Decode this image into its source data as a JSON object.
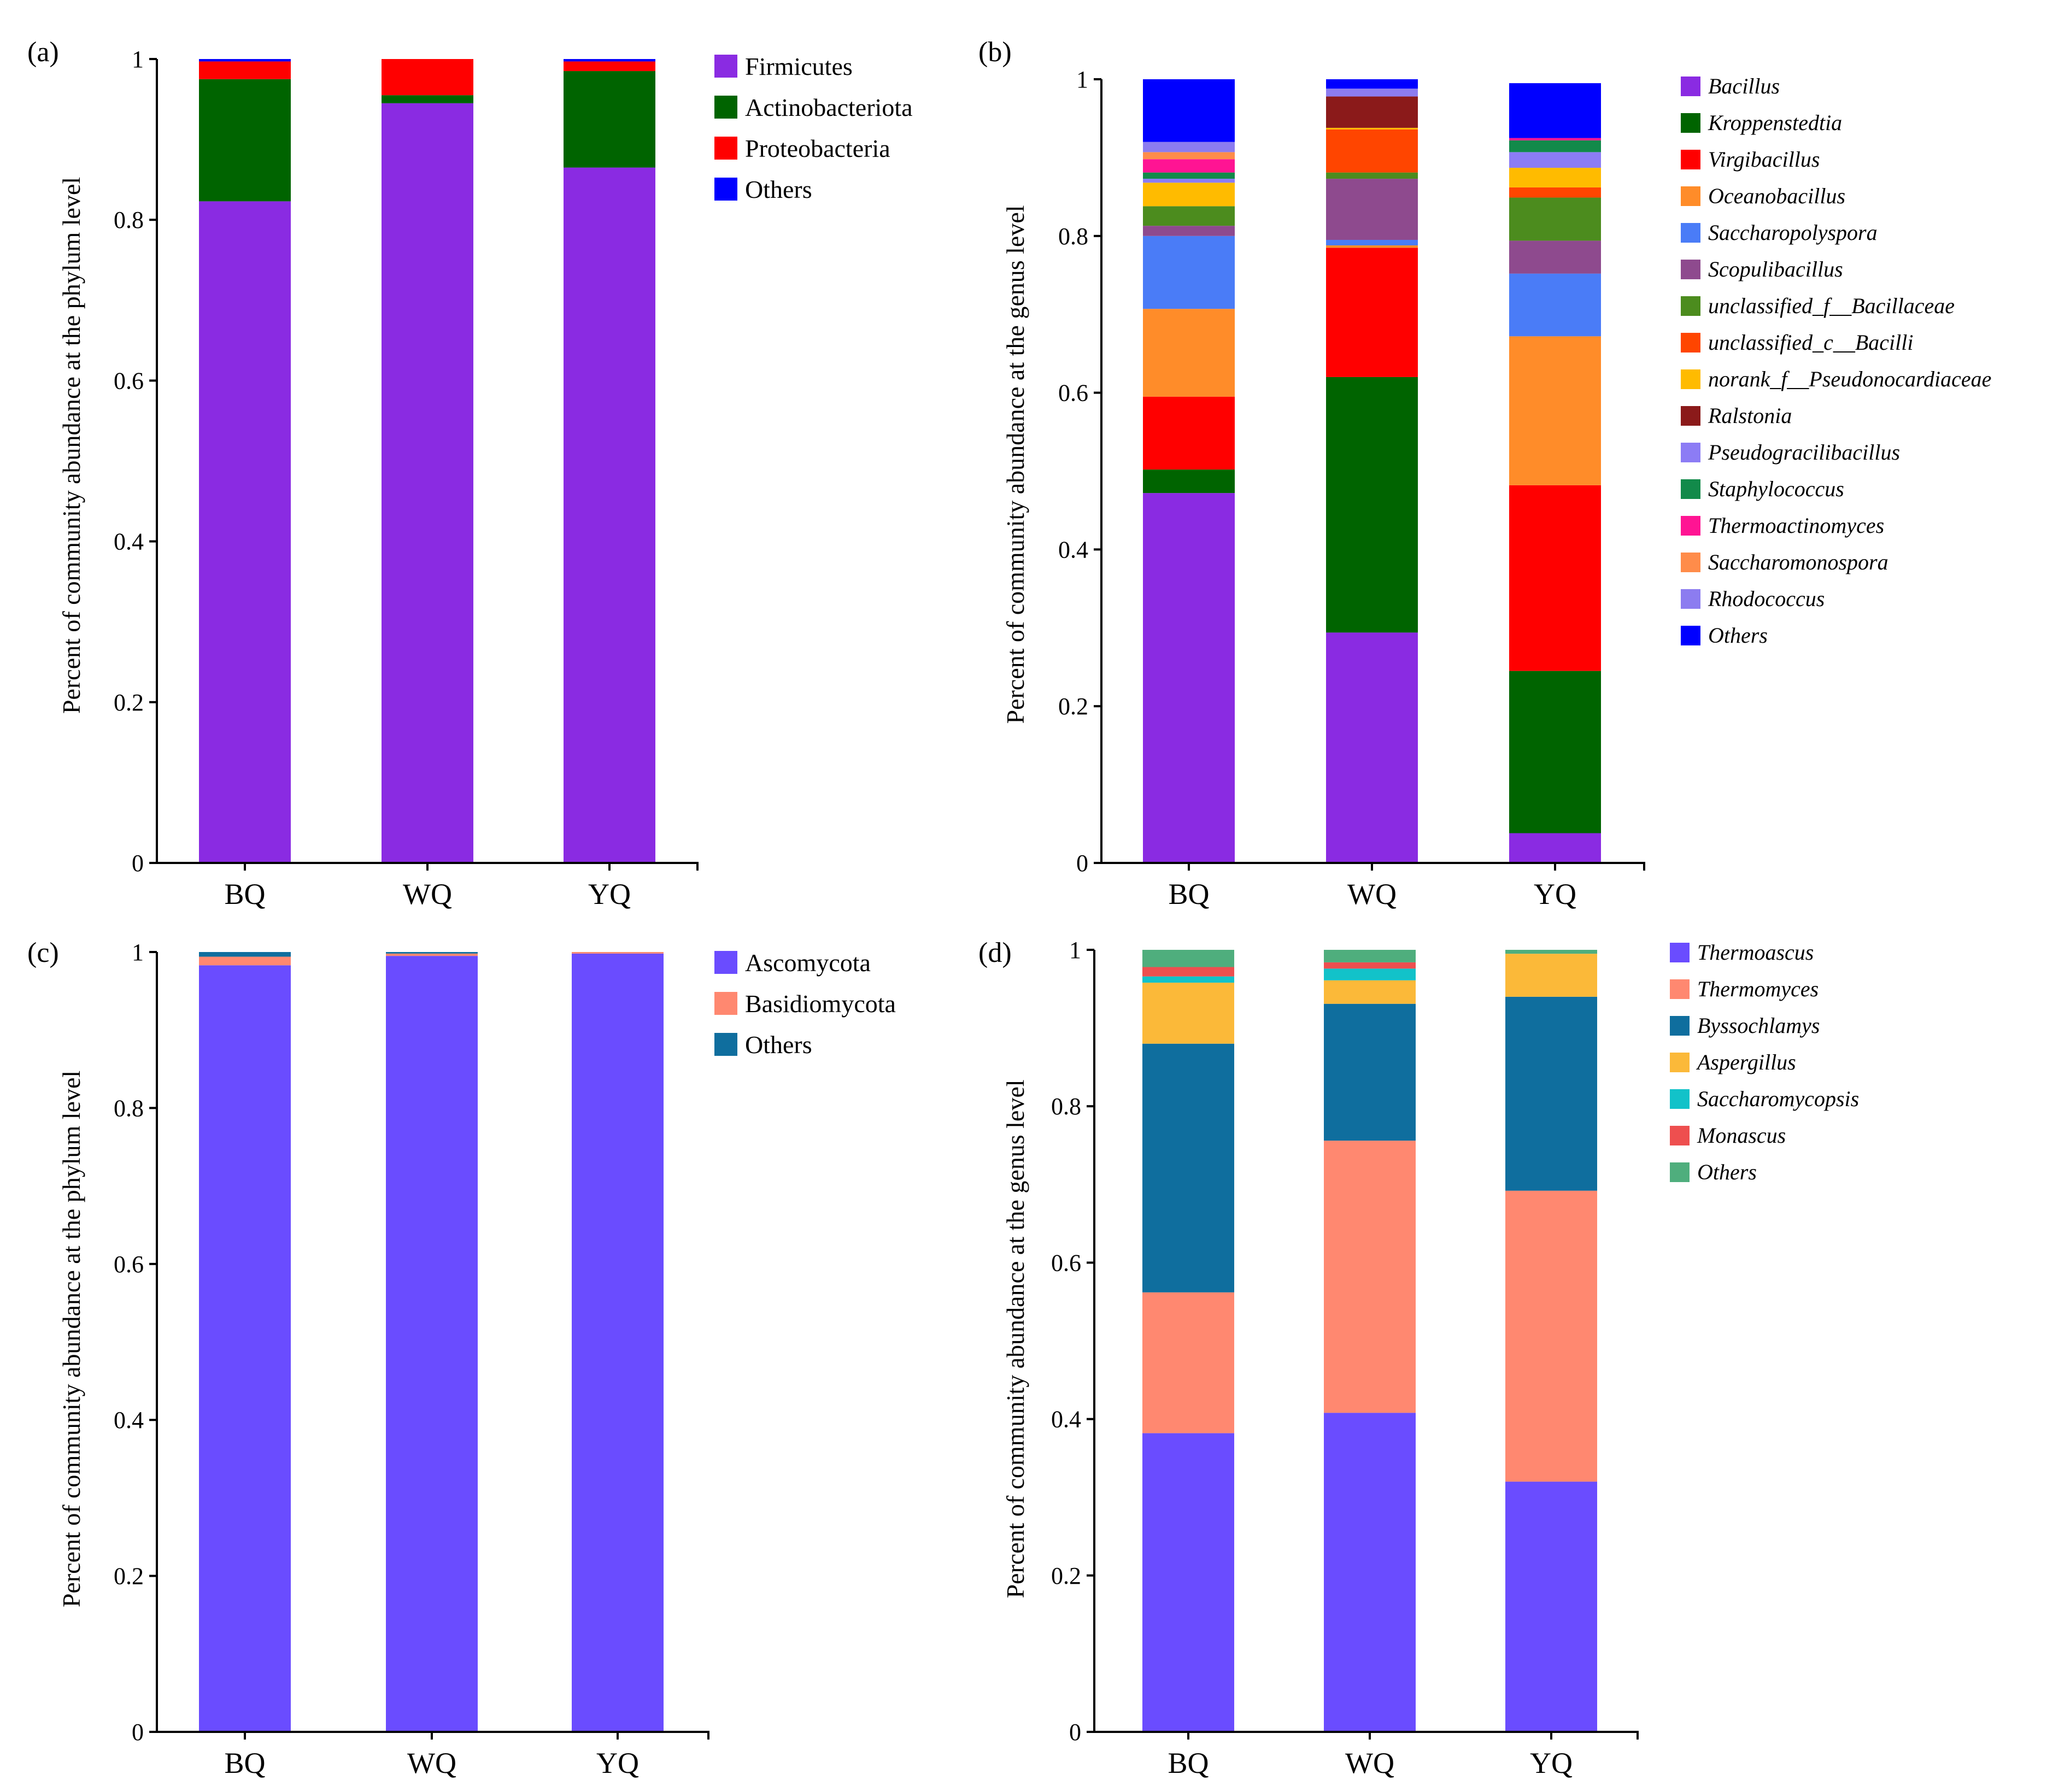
{
  "chart_data": [
    {
      "id": "a",
      "panel_label": "(a)",
      "type": "bar",
      "stacked": true,
      "ylabel": "Percent of community abundance at the phylum level",
      "xlabel": "",
      "ylim": [
        0,
        1
      ],
      "yticks": [
        "0",
        "0.2",
        "0.4",
        "0.6",
        "0.8",
        "1"
      ],
      "categories": [
        "BQ",
        "WQ",
        "YQ"
      ],
      "legend_italic": false,
      "series": [
        {
          "name": "Firmicutes",
          "color": "#8A2BE2",
          "values": [
            0.823,
            0.945,
            0.865
          ]
        },
        {
          "name": "Actinobacteriota",
          "color": "#006400",
          "values": [
            0.152,
            0.01,
            0.12
          ]
        },
        {
          "name": "Proteobacteria",
          "color": "#FF0000",
          "values": [
            0.022,
            0.045,
            0.012
          ]
        },
        {
          "name": "Others",
          "color": "#0000FF",
          "values": [
            0.003,
            0.0,
            0.003
          ]
        }
      ]
    },
    {
      "id": "b",
      "panel_label": "(b)",
      "type": "bar",
      "stacked": true,
      "ylabel": "Percent of community abundance at the genus level",
      "xlabel": "",
      "ylim": [
        0,
        1
      ],
      "yticks": [
        "0",
        "0.2",
        "0.4",
        "0.6",
        "0.8",
        "1"
      ],
      "categories": [
        "BQ",
        "WQ",
        "YQ"
      ],
      "legend_italic": true,
      "series": [
        {
          "name": "Bacillus",
          "color": "#8A2BE2",
          "values": [
            0.472,
            0.294,
            0.038
          ]
        },
        {
          "name": "Kroppenstedtia",
          "color": "#006400",
          "values": [
            0.03,
            0.326,
            0.207
          ]
        },
        {
          "name": "Virgibacillus",
          "color": "#FF0000",
          "values": [
            0.093,
            0.165,
            0.237
          ]
        },
        {
          "name": "Oceanobacillus",
          "color": "#FF8C29",
          "values": [
            0.112,
            0.003,
            0.19
          ]
        },
        {
          "name": "Saccharopolyspora",
          "color": "#4A7CF7",
          "values": [
            0.093,
            0.007,
            0.08
          ]
        },
        {
          "name": "Scopulibacillus",
          "color": "#8E4A8E",
          "values": [
            0.013,
            0.078,
            0.042
          ]
        },
        {
          "name": "unclassified_f__Bacillaceae",
          "color": "#4C8C1E",
          "values": [
            0.025,
            0.008,
            0.055
          ]
        },
        {
          "name": "unclassified_c__Bacilli",
          "color": "#FF4500",
          "values": [
            0.0,
            0.055,
            0.013
          ]
        },
        {
          "name": "norank_f__Pseudonocardiaceae",
          "color": "#FFBB00",
          "values": [
            0.03,
            0.002,
            0.025
          ]
        },
        {
          "name": "Ralstonia",
          "color": "#8B1A1A",
          "values": [
            0.0,
            0.04,
            0.0
          ]
        },
        {
          "name": "Pseudogracilibacillus",
          "color": "#8C7CF5",
          "values": [
            0.005,
            0.0,
            0.02
          ]
        },
        {
          "name": "Staphylococcus",
          "color": "#128A4A",
          "values": [
            0.008,
            0.0,
            0.015
          ]
        },
        {
          "name": "Thermoactinomyces",
          "color": "#FF1493",
          "values": [
            0.017,
            0.0,
            0.003
          ]
        },
        {
          "name": "Saccharomonospora",
          "color": "#FF8C4A",
          "values": [
            0.009,
            0.0,
            0.0
          ]
        },
        {
          "name": "Rhodococcus",
          "color": "#8C7CF0",
          "values": [
            0.013,
            0.01,
            0.0
          ]
        },
        {
          "name": "Others",
          "color": "#0000FF",
          "values": [
            0.08,
            0.012,
            0.07
          ]
        }
      ]
    },
    {
      "id": "c",
      "panel_label": "(c)",
      "type": "bar",
      "stacked": true,
      "ylabel": "Percent of community abundance at the phylum level",
      "xlabel": "",
      "ylim": [
        0,
        1
      ],
      "yticks": [
        "0",
        "0.2",
        "0.4",
        "0.6",
        "0.8",
        "1"
      ],
      "categories": [
        "BQ",
        "WQ",
        "YQ"
      ],
      "legend_italic": false,
      "series": [
        {
          "name": "Ascomycota",
          "color": "#6A4CFF",
          "values": [
            0.983,
            0.995,
            0.998
          ]
        },
        {
          "name": "Basidiomycota",
          "color": "#FF8870",
          "values": [
            0.011,
            0.003,
            0.002
          ]
        },
        {
          "name": "Others",
          "color": "#0F6E9E",
          "values": [
            0.006,
            0.002,
            0.0
          ]
        }
      ]
    },
    {
      "id": "d",
      "panel_label": "(d)",
      "type": "bar",
      "stacked": true,
      "ylabel": "Percent of community abundance at the genus level",
      "xlabel": "",
      "ylim": [
        0,
        1
      ],
      "yticks": [
        "0",
        "0.2",
        "0.4",
        "0.6",
        "0.8",
        "1"
      ],
      "categories": [
        "BQ",
        "WQ",
        "YQ"
      ],
      "legend_italic": true,
      "series": [
        {
          "name": "Thermoascus",
          "color": "#6A4CFF",
          "values": [
            0.382,
            0.408,
            0.32
          ]
        },
        {
          "name": "Thermomyces",
          "color": "#FF8870",
          "values": [
            0.18,
            0.348,
            0.372
          ]
        },
        {
          "name": "Byssochlamys",
          "color": "#0F6E9E",
          "values": [
            0.318,
            0.175,
            0.248
          ]
        },
        {
          "name": "Aspergillus",
          "color": "#FBB939",
          "values": [
            0.078,
            0.03,
            0.055
          ]
        },
        {
          "name": "Saccharomycopsis",
          "color": "#12C2C9",
          "values": [
            0.008,
            0.015,
            0.0
          ]
        },
        {
          "name": "Monascus",
          "color": "#EE4F4F",
          "values": [
            0.012,
            0.008,
            0.0
          ]
        },
        {
          "name": "Others",
          "color": "#4FAE7D",
          "values": [
            0.022,
            0.016,
            0.005
          ]
        }
      ]
    }
  ]
}
